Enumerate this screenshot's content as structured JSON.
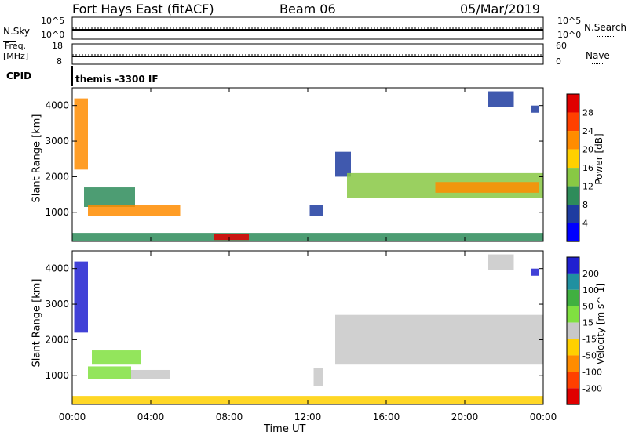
{
  "header": {
    "radar_title": "Fort Hays East (fitACF)",
    "beam": "Beam 06",
    "date": "05/Mar/2019"
  },
  "top_panels": {
    "nsky_label": "N.Sky",
    "nsky_ticks": [
      "10^5",
      "10^0"
    ],
    "nsearch_label": "N.Search",
    "freq_label_1": "Freq.",
    "freq_label_2": "[MHz]",
    "freq_ticks": [
      "18",
      "8"
    ],
    "nave_label": "Nave",
    "nave_ticks": [
      "60",
      "0"
    ],
    "cpid_label": "CPID",
    "cpid_value": "themis -3300 IF"
  },
  "chart_data": [
    {
      "type": "heatmap",
      "name": "power",
      "ylabel": "Slant Range [km]",
      "colorbar_label": "Power [dB]",
      "colorbar_ticks": [
        "28",
        "24",
        "20",
        "16",
        "12",
        "8",
        "4"
      ],
      "colorbar_colors": [
        "#e00000",
        "#ff4000",
        "#ff8c00",
        "#ffd000",
        "#88c844",
        "#2e8c5a",
        "#1e3ca0",
        "#0000ff"
      ],
      "ylim": [
        180,
        4500
      ],
      "y_ticks": [
        "4000",
        "3000",
        "2000",
        "1000"
      ],
      "x_ticks": [
        "00:00",
        "04:00",
        "08:00",
        "12:00",
        "16:00",
        "20:00",
        "00:00"
      ],
      "xlim_hours": [
        0,
        24
      ],
      "regions": [
        {
          "t": [
            0.1,
            0.8
          ],
          "r": [
            2200,
            4200
          ],
          "color": "#ff8c00"
        },
        {
          "t": [
            0.6,
            3.2
          ],
          "r": [
            1150,
            1700
          ],
          "color": "#2e8c5a"
        },
        {
          "t": [
            0.8,
            5.5
          ],
          "r": [
            900,
            1200
          ],
          "color": "#ff8c00"
        },
        {
          "t": [
            0,
            24
          ],
          "r": [
            200,
            420
          ],
          "color": "#2e8c5a"
        },
        {
          "t": [
            7.2,
            9.0
          ],
          "r": [
            220,
            380
          ],
          "color": "#e00000"
        },
        {
          "t": [
            12.1,
            12.8
          ],
          "r": [
            900,
            1200
          ],
          "color": "#1e3ca0"
        },
        {
          "t": [
            13.4,
            14.2
          ],
          "r": [
            2000,
            2700
          ],
          "color": "#1e3ca0"
        },
        {
          "t": [
            14.0,
            24
          ],
          "r": [
            1400,
            2100
          ],
          "color": "#88c844"
        },
        {
          "t": [
            18.5,
            23.8
          ],
          "r": [
            1550,
            1850
          ],
          "color": "#ff8c00"
        },
        {
          "t": [
            21.2,
            22.5
          ],
          "r": [
            3950,
            4400
          ],
          "color": "#1e3ca0"
        },
        {
          "t": [
            23.4,
            23.8
          ],
          "r": [
            3800,
            4000
          ],
          "color": "#1e3ca0"
        }
      ]
    },
    {
      "type": "heatmap",
      "name": "velocity",
      "ylabel": "Slant Range [km]",
      "colorbar_label": "Velocity [m s^-1]",
      "colorbar_ticks": [
        "200",
        "100",
        "50",
        "15",
        "-15",
        "-50",
        "-100",
        "-200"
      ],
      "colorbar_colors": [
        "#2020d0",
        "#2090a0",
        "#40b040",
        "#80e040",
        "#c8c8c8",
        "#ffd000",
        "#ff8c00",
        "#ff4000",
        "#e00000"
      ],
      "ylim": [
        180,
        4500
      ],
      "y_ticks": [
        "4000",
        "3000",
        "2000",
        "1000"
      ],
      "x_ticks": [
        "00:00",
        "04:00",
        "08:00",
        "12:00",
        "16:00",
        "20:00",
        "00:00"
      ],
      "xlim_hours": [
        0,
        24
      ],
      "xlabel": "Time UT",
      "regions": [
        {
          "t": [
            0.1,
            0.8
          ],
          "r": [
            2200,
            4200
          ],
          "color": "#2020d0"
        },
        {
          "t": [
            1.0,
            3.5
          ],
          "r": [
            1300,
            1700
          ],
          "color": "#80e040"
        },
        {
          "t": [
            0.8,
            3.0
          ],
          "r": [
            900,
            1250
          ],
          "color": "#80e040"
        },
        {
          "t": [
            3.0,
            5.0
          ],
          "r": [
            900,
            1150
          ],
          "color": "#c8c8c8"
        },
        {
          "t": [
            0,
            24
          ],
          "r": [
            200,
            420
          ],
          "color": "#ffd000"
        },
        {
          "t": [
            12.3,
            12.8
          ],
          "r": [
            700,
            1200
          ],
          "color": "#c8c8c8"
        },
        {
          "t": [
            13.4,
            24
          ],
          "r": [
            1300,
            2700
          ],
          "color": "#c8c8c8"
        },
        {
          "t": [
            21.2,
            22.5
          ],
          "r": [
            3950,
            4400
          ],
          "color": "#c8c8c8"
        },
        {
          "t": [
            23.4,
            23.8
          ],
          "r": [
            3800,
            4000
          ],
          "color": "#2020d0"
        }
      ]
    }
  ]
}
